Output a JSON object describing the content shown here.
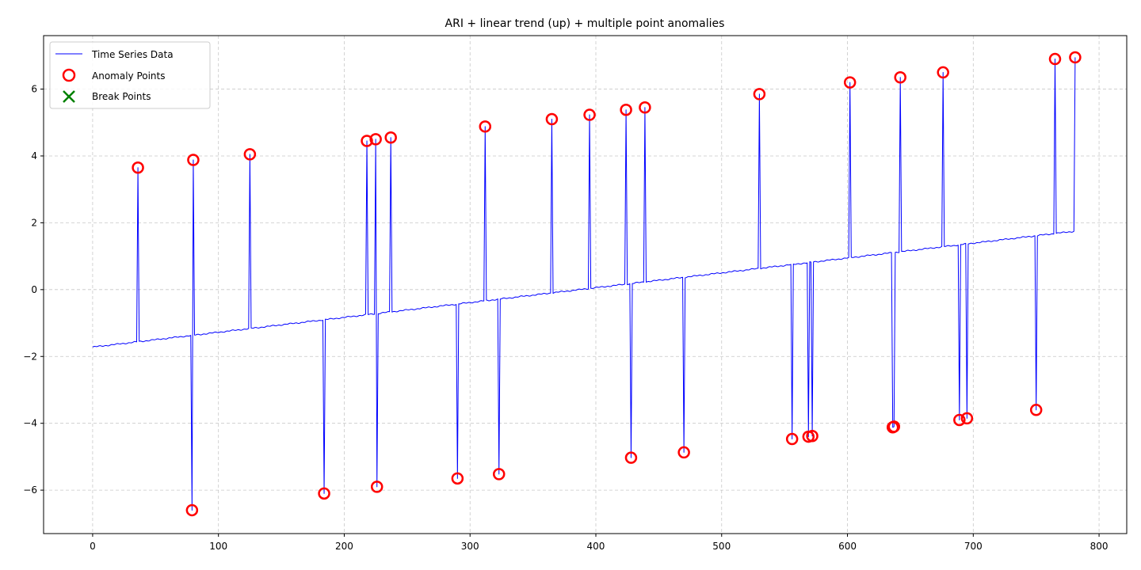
{
  "chart_data": {
    "type": "line",
    "title": "ARI + linear trend (up) + multiple point anomalies",
    "xlabel": "",
    "ylabel": "",
    "xlim": [
      -39,
      822
    ],
    "ylim": [
      -7.3,
      7.6
    ],
    "xticks": [
      0,
      100,
      200,
      300,
      400,
      500,
      600,
      700,
      800
    ],
    "yticks": [
      -6,
      -4,
      -2,
      0,
      2,
      4,
      6
    ],
    "grid": true,
    "legend_position": "top-left",
    "legend": [
      {
        "label": "Time Series Data",
        "kind": "line",
        "color": "#0000ff"
      },
      {
        "label": "Anomaly Points",
        "kind": "circle",
        "color": "#ff0000"
      },
      {
        "label": "Break Points",
        "kind": "x",
        "color": "#008000"
      }
    ],
    "series": [
      {
        "name": "Time Series Data",
        "color": "#0000ff",
        "baseline": {
          "x_start": 0,
          "y_start": -1.72,
          "x_end": 781,
          "y_end": 1.75
        },
        "n_points": 782
      }
    ],
    "anomalies": {
      "name": "Anomaly Points",
      "color": "#ff0000",
      "points": [
        {
          "x": 36,
          "y": 3.65
        },
        {
          "x": 79,
          "y": -6.6
        },
        {
          "x": 80,
          "y": 3.88
        },
        {
          "x": 125,
          "y": 4.05
        },
        {
          "x": 184,
          "y": -6.1
        },
        {
          "x": 218,
          "y": 4.45
        },
        {
          "x": 225,
          "y": 4.5
        },
        {
          "x": 226,
          "y": -5.9
        },
        {
          "x": 237,
          "y": 4.55
        },
        {
          "x": 290,
          "y": -5.65
        },
        {
          "x": 312,
          "y": 4.88
        },
        {
          "x": 323,
          "y": -5.52
        },
        {
          "x": 365,
          "y": 5.1
        },
        {
          "x": 395,
          "y": 5.23
        },
        {
          "x": 424,
          "y": 5.38
        },
        {
          "x": 428,
          "y": -5.03
        },
        {
          "x": 439,
          "y": 5.45
        },
        {
          "x": 470,
          "y": -4.87
        },
        {
          "x": 530,
          "y": 5.85
        },
        {
          "x": 556,
          "y": -4.47
        },
        {
          "x": 569,
          "y": -4.4
        },
        {
          "x": 572,
          "y": -4.38
        },
        {
          "x": 602,
          "y": 6.2
        },
        {
          "x": 636,
          "y": -4.12
        },
        {
          "x": 637,
          "y": -4.1
        },
        {
          "x": 642,
          "y": 6.35
        },
        {
          "x": 676,
          "y": 6.5
        },
        {
          "x": 689,
          "y": -3.9
        },
        {
          "x": 695,
          "y": -3.85
        },
        {
          "x": 750,
          "y": -3.6
        },
        {
          "x": 765,
          "y": 6.9
        },
        {
          "x": 781,
          "y": 6.95
        }
      ]
    },
    "breaks": {
      "name": "Break Points",
      "color": "#008000",
      "points": []
    }
  }
}
